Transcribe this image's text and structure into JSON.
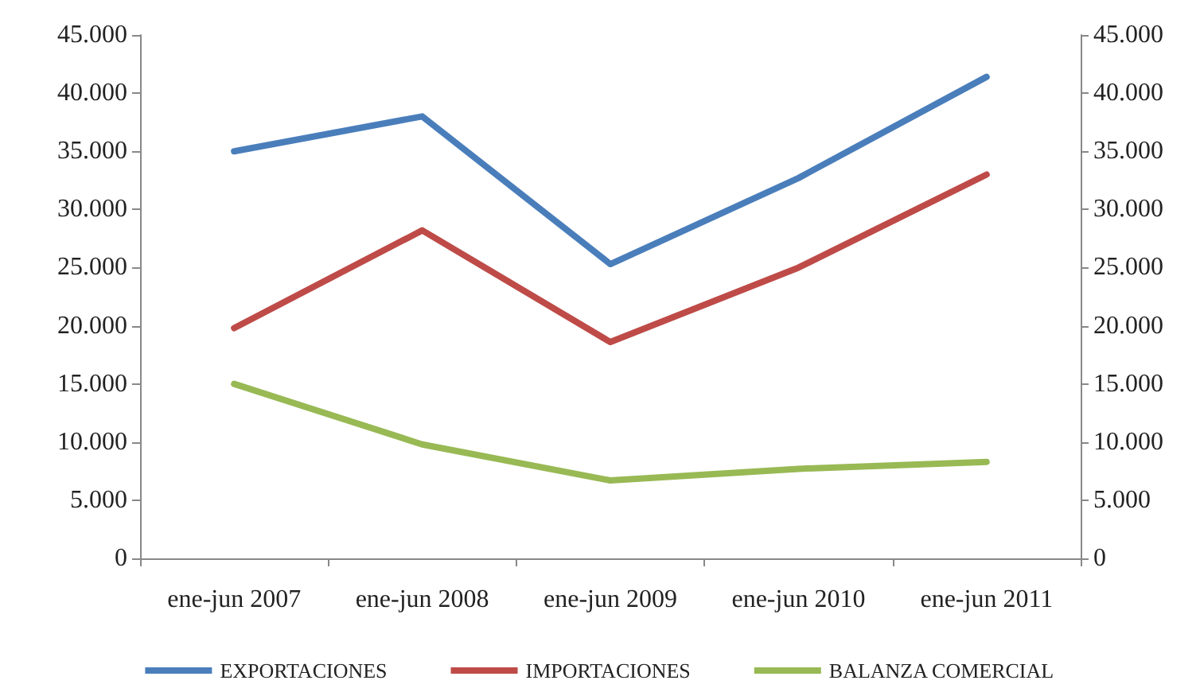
{
  "chart_data": {
    "type": "line",
    "categories": [
      "ene-jun 2007",
      "ene-jun 2008",
      "ene-jun 2009",
      "ene-jun 2010",
      "ene-jun 2011"
    ],
    "series": [
      {
        "name": "EXPORTACIONES",
        "color": "#4a7ebb",
        "values": [
          35000,
          38000,
          25300,
          32700,
          41400
        ]
      },
      {
        "name": "IMPORTACIONES",
        "color": "#be4b48",
        "values": [
          19800,
          28200,
          18600,
          25000,
          33000
        ]
      },
      {
        "name": "BALANZA COMERCIAL",
        "color": "#98b954",
        "values": [
          15000,
          9800,
          6700,
          7700,
          8300
        ]
      }
    ],
    "ylim": [
      0,
      45000
    ],
    "yticks": [
      0,
      {
        "value": 5000,
        "label": "5.000"
      },
      {
        "value": 10000,
        "label": "10.000"
      },
      {
        "value": 15000,
        "label": "15.000"
      },
      {
        "value": 20000,
        "label": "20.000"
      },
      {
        "value": 25000,
        "label": "25.000"
      },
      {
        "value": 30000,
        "label": "30.000"
      },
      {
        "value": 35000,
        "label": "35.000"
      },
      {
        "value": 40000,
        "label": "40.000"
      },
      {
        "value": 45000,
        "label": "45.000"
      }
    ],
    "y2lim": [
      0,
      45000
    ],
    "y2ticks": [
      0,
      {
        "value": 5000,
        "label": "5.000"
      },
      {
        "value": 10000,
        "label": "10.000"
      },
      {
        "value": 15000,
        "label": "15.000"
      },
      {
        "value": 20000,
        "label": "20.000"
      },
      {
        "value": 25000,
        "label": "25.000"
      },
      {
        "value": 30000,
        "label": "30.000"
      },
      {
        "value": 35000,
        "label": "35.000"
      },
      {
        "value": 40000,
        "label": "40.000"
      },
      {
        "value": 45000,
        "label": "45.000"
      }
    ],
    "grid": false,
    "legend": "bottom",
    "marker": "none",
    "line_style": "solid"
  }
}
